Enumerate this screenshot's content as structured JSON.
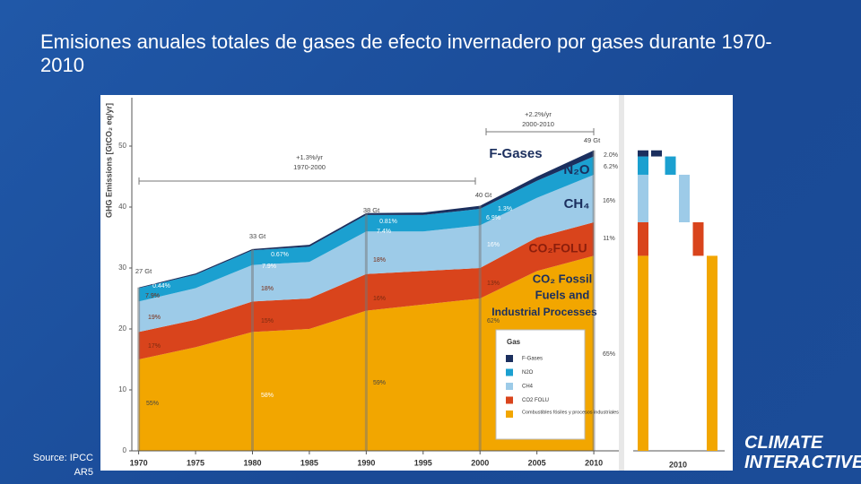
{
  "title": "Emisiones anuales totales de gases de efecto invernadero por gases durante 1970- 2010",
  "source": [
    "Source: IPCC",
    "AR5"
  ],
  "logo": [
    "CLIMATE",
    "INTERACTIVE"
  ],
  "chart_data": [
    {
      "type": "stacked-area",
      "y_label": "GHG Emissions [GtCO₂ eq/yr]",
      "x": [
        1970,
        1975,
        1980,
        1985,
        1990,
        1995,
        2000,
        2005,
        2010
      ],
      "xlim": [
        1969.4,
        2012.2
      ],
      "xticks": [
        1970,
        1975,
        1980,
        1985,
        1990,
        1995,
        2000,
        2005,
        2010
      ],
      "ylim": [
        0,
        55
      ],
      "yticks": [
        0,
        10,
        20,
        30,
        40,
        50
      ],
      "series": [
        {
          "name": "Combustibles fósiles y procesos industriales",
          "color": "#f2a600",
          "values": [
            15,
            17,
            19.5,
            20,
            23,
            24,
            25,
            29.5,
            32
          ]
        },
        {
          "name": "CO2 FOLU",
          "color": "#d9441c",
          "values": [
            4.5,
            4.5,
            5,
            5,
            6,
            5.5,
            5,
            5.5,
            5.5
          ]
        },
        {
          "name": "CH4",
          "color": "#9dcbe8",
          "values": [
            5,
            5.2,
            6,
            6,
            7,
            6.5,
            7,
            6.5,
            7.8
          ]
        },
        {
          "name": "N2O",
          "color": "#1ba0d0",
          "values": [
            2.2,
            2.2,
            2.4,
            2.5,
            2.7,
            2.7,
            2.7,
            2.8,
            3.0
          ]
        },
        {
          "name": "F-Gases",
          "color": "#1b2f5e",
          "values": [
            0.1,
            0.2,
            0.2,
            0.3,
            0.3,
            0.4,
            0.5,
            0.7,
            1.0
          ]
        }
      ],
      "series_labels": [
        "CO₂ Fossil",
        "Fuels and",
        "Industrial Processes",
        "CO₂FOLU",
        "CH₄",
        "N₂O",
        "F-Gases"
      ],
      "legend_title": "Gas",
      "annotations": [
        "27 Gt",
        "33 Gt",
        "38 Gt",
        "40 Gt",
        "49 Gt",
        "+1.3%/yr",
        "1970-2000",
        "+2.2%/yr",
        "2000-2010",
        "55%",
        "17%",
        "19%",
        "7.9%",
        "0.44%",
        "58%",
        "15%",
        "18%",
        "7.9%",
        "0.67%",
        "59%",
        "16%",
        "18%",
        "7.4%",
        "0.81%",
        "62%",
        "13%",
        "16%",
        "6.9%",
        "1.3%",
        "65%",
        "11%",
        "16%",
        "6.2%",
        "2.0%"
      ]
    },
    {
      "type": "waterfall",
      "categories": [
        "2010"
      ],
      "ylim": [
        0,
        55
      ],
      "series": [
        {
          "color": "#f2a600",
          "values": [
            32
          ]
        },
        {
          "color": "#d9441c",
          "values": [
            5.5
          ]
        },
        {
          "color": "#9dcbe8",
          "values": [
            7.8
          ]
        },
        {
          "color": "#1ba0d0",
          "values": [
            3.0
          ]
        },
        {
          "color": "#1b2f5e",
          "values": [
            1.0
          ]
        }
      ]
    }
  ]
}
